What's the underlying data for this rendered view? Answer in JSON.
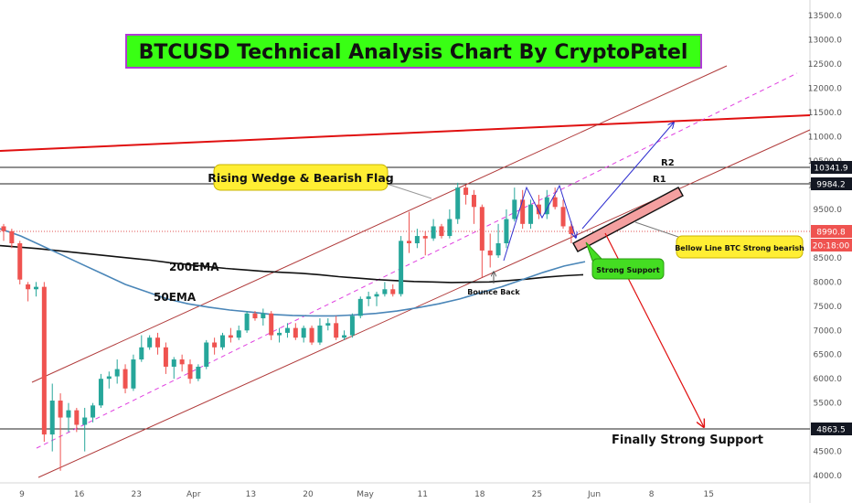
{
  "chart_data": {
    "type": "candlestick",
    "title": "BTCUSD Technical Analysis Chart By CryptoPatel",
    "y_axis": {
      "ticks": [
        4000,
        4500,
        5000,
        5500,
        6000,
        6500,
        7000,
        7500,
        8000,
        8500,
        9000,
        9500,
        10000,
        10500,
        11000,
        11500,
        12000,
        12500,
        13000,
        13500
      ],
      "tick_labels": [
        "4000.0",
        "4500.0",
        "5000.0",
        "5500.0",
        "6000.0",
        "6500.0",
        "7000.0",
        "7500.0",
        "8000.0",
        "8500.0",
        "9000.0",
        "9500.0",
        "10000.0",
        "10500.0",
        "11000.0",
        "11500.0",
        "12000.0",
        "12500.0",
        "13000.0",
        "13500.0"
      ],
      "range": [
        3850,
        13750
      ]
    },
    "x_axis": {
      "tick_labels": [
        "9",
        "16",
        "23",
        "Apr",
        "13",
        "20",
        "May",
        "11",
        "18",
        "25",
        "Jun",
        "8",
        "15"
      ]
    },
    "price_tags": [
      {
        "label": "10341.9",
        "value": 10342,
        "style": "dark"
      },
      {
        "label": "9984.2",
        "value": 9984,
        "style": "dark"
      },
      {
        "label": "8990.8",
        "value": 8991,
        "style": "red"
      },
      {
        "label": "20:18:00",
        "value": 8770,
        "style": "red"
      },
      {
        "label": "4863.5",
        "value": 4864,
        "style": "dark"
      }
    ],
    "candles": [
      {
        "o": 9150,
        "h": 9200,
        "l": 8850,
        "c": 9050
      },
      {
        "o": 9050,
        "h": 9100,
        "l": 8700,
        "c": 8800
      },
      {
        "o": 8800,
        "h": 8850,
        "l": 7950,
        "c": 8050
      },
      {
        "o": 7950,
        "h": 8000,
        "l": 7600,
        "c": 7850
      },
      {
        "o": 7850,
        "h": 8000,
        "l": 7700,
        "c": 7900
      },
      {
        "o": 7900,
        "h": 8000,
        "l": 4700,
        "c": 4850
      },
      {
        "o": 4850,
        "h": 5900,
        "l": 4500,
        "c": 5550
      },
      {
        "o": 5550,
        "h": 5700,
        "l": 4100,
        "c": 5200
      },
      {
        "o": 5200,
        "h": 5500,
        "l": 4900,
        "c": 5350
      },
      {
        "o": 5350,
        "h": 5400,
        "l": 4900,
        "c": 5050
      },
      {
        "o": 5050,
        "h": 5400,
        "l": 4500,
        "c": 5200
      },
      {
        "o": 5200,
        "h": 5500,
        "l": 5100,
        "c": 5450
      },
      {
        "o": 5450,
        "h": 6100,
        "l": 5400,
        "c": 6000
      },
      {
        "o": 6000,
        "h": 6150,
        "l": 5800,
        "c": 6050
      },
      {
        "o": 6050,
        "h": 6400,
        "l": 5900,
        "c": 6200
      },
      {
        "o": 6200,
        "h": 6300,
        "l": 5700,
        "c": 5800
      },
      {
        "o": 5800,
        "h": 6500,
        "l": 5750,
        "c": 6400
      },
      {
        "o": 6400,
        "h": 6900,
        "l": 6350,
        "c": 6650
      },
      {
        "o": 6650,
        "h": 6900,
        "l": 6600,
        "c": 6850
      },
      {
        "o": 6850,
        "h": 6950,
        "l": 6500,
        "c": 6650
      },
      {
        "o": 6650,
        "h": 6750,
        "l": 6100,
        "c": 6250
      },
      {
        "o": 6250,
        "h": 6450,
        "l": 6000,
        "c": 6400
      },
      {
        "o": 6400,
        "h": 6500,
        "l": 6150,
        "c": 6300
      },
      {
        "o": 6300,
        "h": 6400,
        "l": 5900,
        "c": 6000
      },
      {
        "o": 6000,
        "h": 6300,
        "l": 5950,
        "c": 6250
      },
      {
        "o": 6250,
        "h": 6800,
        "l": 6200,
        "c": 6750
      },
      {
        "o": 6750,
        "h": 6850,
        "l": 6500,
        "c": 6650
      },
      {
        "o": 6650,
        "h": 6950,
        "l": 6600,
        "c": 6900
      },
      {
        "o": 6900,
        "h": 7050,
        "l": 6750,
        "c": 6850
      },
      {
        "o": 6850,
        "h": 7100,
        "l": 6800,
        "c": 7000
      },
      {
        "o": 7000,
        "h": 7400,
        "l": 6950,
        "c": 7350
      },
      {
        "o": 7350,
        "h": 7400,
        "l": 7200,
        "c": 7250
      },
      {
        "o": 7250,
        "h": 7450,
        "l": 7100,
        "c": 7350
      },
      {
        "o": 7350,
        "h": 7400,
        "l": 6800,
        "c": 6900
      },
      {
        "o": 6900,
        "h": 7050,
        "l": 6750,
        "c": 6950
      },
      {
        "o": 6950,
        "h": 7150,
        "l": 6850,
        "c": 7050
      },
      {
        "o": 7050,
        "h": 7150,
        "l": 6800,
        "c": 6850
      },
      {
        "o": 6850,
        "h": 7100,
        "l": 6750,
        "c": 7050
      },
      {
        "o": 7050,
        "h": 7100,
        "l": 6700,
        "c": 6750
      },
      {
        "o": 6750,
        "h": 7250,
        "l": 6700,
        "c": 7100
      },
      {
        "o": 7100,
        "h": 7250,
        "l": 7000,
        "c": 7150
      },
      {
        "o": 7150,
        "h": 7300,
        "l": 6800,
        "c": 6850
      },
      {
        "o": 6850,
        "h": 7000,
        "l": 6800,
        "c": 6900
      },
      {
        "o": 6900,
        "h": 7350,
        "l": 6850,
        "c": 7300
      },
      {
        "o": 7300,
        "h": 7700,
        "l": 7250,
        "c": 7650
      },
      {
        "o": 7650,
        "h": 7800,
        "l": 7500,
        "c": 7700
      },
      {
        "o": 7700,
        "h": 7800,
        "l": 7500,
        "c": 7750
      },
      {
        "o": 7750,
        "h": 8000,
        "l": 7700,
        "c": 7850
      },
      {
        "o": 7850,
        "h": 7950,
        "l": 7700,
        "c": 7750
      },
      {
        "o": 7750,
        "h": 8950,
        "l": 7700,
        "c": 8850
      },
      {
        "o": 8850,
        "h": 9450,
        "l": 8600,
        "c": 8800
      },
      {
        "o": 8800,
        "h": 9100,
        "l": 8700,
        "c": 8950
      },
      {
        "o": 8950,
        "h": 9050,
        "l": 8550,
        "c": 8900
      },
      {
        "o": 8900,
        "h": 9300,
        "l": 8850,
        "c": 9150
      },
      {
        "o": 9150,
        "h": 9200,
        "l": 8900,
        "c": 8950
      },
      {
        "o": 8950,
        "h": 9500,
        "l": 8900,
        "c": 9300
      },
      {
        "o": 9300,
        "h": 10050,
        "l": 9200,
        "c": 9950
      },
      {
        "o": 9950,
        "h": 10000,
        "l": 9600,
        "c": 9800
      },
      {
        "o": 9800,
        "h": 9900,
        "l": 9200,
        "c": 9550
      },
      {
        "o": 9550,
        "h": 9600,
        "l": 8100,
        "c": 8650
      },
      {
        "o": 8650,
        "h": 9000,
        "l": 8300,
        "c": 8550
      },
      {
        "o": 8550,
        "h": 9200,
        "l": 8500,
        "c": 8800
      },
      {
        "o": 8800,
        "h": 9500,
        "l": 8700,
        "c": 9300
      },
      {
        "o": 9300,
        "h": 9950,
        "l": 9250,
        "c": 9700
      },
      {
        "o": 9700,
        "h": 9900,
        "l": 9100,
        "c": 9200
      },
      {
        "o": 9200,
        "h": 9700,
        "l": 9100,
        "c": 9600
      },
      {
        "o": 9600,
        "h": 9800,
        "l": 9300,
        "c": 9400
      },
      {
        "o": 9400,
        "h": 9900,
        "l": 9300,
        "c": 9750
      },
      {
        "o": 9750,
        "h": 9950,
        "l": 9500,
        "c": 9550
      },
      {
        "o": 9550,
        "h": 9700,
        "l": 9100,
        "c": 9150
      },
      {
        "o": 9150,
        "h": 9250,
        "l": 8800,
        "c": 8990
      }
    ],
    "ema_50": [
      9100,
      8950,
      8750,
      8550,
      8350,
      8150,
      7950,
      7800,
      7650,
      7550,
      7480,
      7420,
      7380,
      7330,
      7310,
      7300,
      7300,
      7320,
      7350,
      7400,
      7470,
      7550,
      7650,
      7780,
      7900,
      8050,
      8200,
      8330,
      8420
    ],
    "ema_200": [
      8750,
      8720,
      8690,
      8650,
      8610,
      8570,
      8530,
      8490,
      8450,
      8400,
      8360,
      8320,
      8280,
      8250,
      8220,
      8200,
      8180,
      8150,
      8110,
      8080,
      8050,
      8030,
      8010,
      8000,
      7990,
      7995,
      8000,
      8030,
      8060,
      8100,
      8130,
      8150
    ],
    "annotations": {
      "rising_wedge_label": "Rising Wedge & Bearish Flag",
      "ema200_label": "200EMA",
      "ema50_label": "50EMA",
      "r2_label": "R2",
      "r1_label": "R1",
      "bounce_label": "Bounce Back",
      "strong_support_label": "Strong Support",
      "bearish_label": "Bellow Line BTC Strong bearish",
      "final_support_label": "Finally Strong Support"
    },
    "colors": {
      "up": "#26a69a",
      "down": "#ef5350",
      "title_bg": "#39ff14",
      "title_border": "#b03ad6",
      "callout_yellow": "#ffee33",
      "callout_green": "#44dd22",
      "resistance_red": "#e01010",
      "channel": "#b03a3a",
      "midline": "#e040e0",
      "ema50": "#4a86b8",
      "ema200": "#111111",
      "arrow_blue": "#3030d0",
      "arrow_red": "#e01010"
    }
  }
}
